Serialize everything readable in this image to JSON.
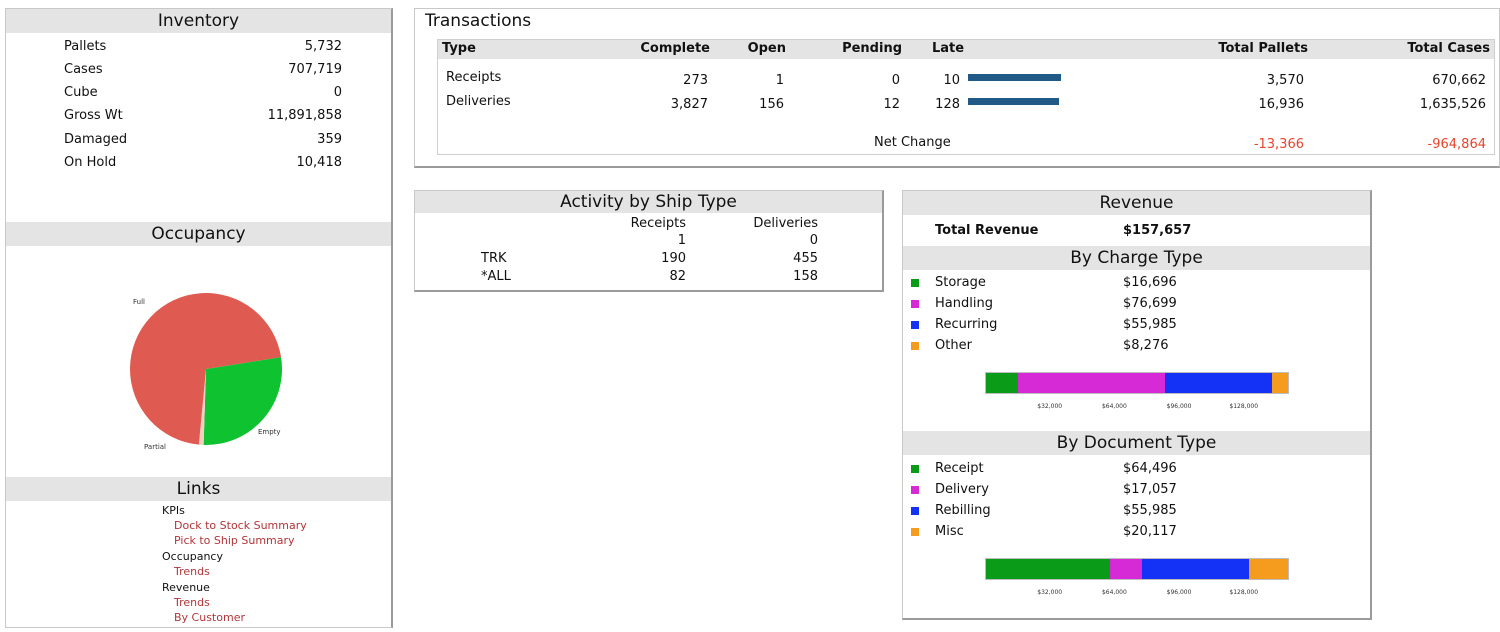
{
  "inventory": {
    "title": "Inventory",
    "rows": [
      {
        "label": "Pallets",
        "value": "5,732"
      },
      {
        "label": "Cases",
        "value": "707,719"
      },
      {
        "label": "Cube",
        "value": "0"
      },
      {
        "label": "Gross Wt",
        "value": "11,891,858"
      },
      {
        "label": "Damaged",
        "value": "359"
      },
      {
        "label": "On Hold",
        "value": "10,418"
      }
    ]
  },
  "occupancy": {
    "title": "Occupancy",
    "labels": {
      "full": "Full",
      "empty": "Empty",
      "partial": "Partial"
    },
    "chart_data": {
      "type": "pie",
      "labels": [
        "Full",
        "Empty",
        "Partial"
      ],
      "values": [
        71,
        28,
        1
      ],
      "colors": [
        "#df5a50",
        "#0ec230",
        "#f2d0c0"
      ]
    }
  },
  "links": {
    "title": "Links",
    "items": [
      {
        "text": "KPIs",
        "kind": "category"
      },
      {
        "text": "Dock to Stock Summary",
        "kind": "link"
      },
      {
        "text": "Pick to Ship Summary",
        "kind": "link"
      },
      {
        "text": "Occupancy",
        "kind": "category"
      },
      {
        "text": "Trends",
        "kind": "link"
      },
      {
        "text": "Revenue",
        "kind": "category"
      },
      {
        "text": "Trends",
        "kind": "link"
      },
      {
        "text": "By Customer",
        "kind": "link"
      }
    ]
  },
  "transactions": {
    "title": "Transactions",
    "headers": {
      "type": "Type",
      "complete": "Complete",
      "open": "Open",
      "pending": "Pending",
      "late": "Late",
      "total_pallets": "Total Pallets",
      "total_cases": "Total Cases"
    },
    "rows": [
      {
        "type": "Receipts",
        "complete": "273",
        "open": "1",
        "pending": "0",
        "late": "10",
        "late_fraction": 0.93,
        "total_pallets": "3,570",
        "total_cases": "670,662"
      },
      {
        "type": "Deliveries",
        "complete": "3,827",
        "open": "156",
        "pending": "12",
        "late": "128",
        "late_fraction": 0.91,
        "total_pallets": "16,936",
        "total_cases": "1,635,526"
      }
    ],
    "net_change": {
      "label": "Net Change",
      "total_pallets": "-13,366",
      "total_cases": "-964,864"
    },
    "colors": {
      "late_bar": "#215a86",
      "negative": "#e8452e"
    }
  },
  "activity": {
    "title": "Activity by Ship Type",
    "headers": {
      "receipts": "Receipts",
      "deliveries": "Deliveries"
    },
    "rows": [
      {
        "type": "",
        "receipts": "1",
        "deliveries": "0"
      },
      {
        "type": "TRK",
        "receipts": "190",
        "deliveries": "455"
      },
      {
        "type": "*ALL",
        "receipts": "82",
        "deliveries": "158"
      }
    ]
  },
  "revenue": {
    "title": "Revenue",
    "total_label": "Total Revenue",
    "total_value": "$157,657",
    "charge_type": {
      "title": "By Charge Type",
      "items": [
        {
          "label": "Storage",
          "value": "$16,696",
          "amount": 16696,
          "color": "#0a9c18"
        },
        {
          "label": "Handling",
          "value": "$76,699",
          "amount": 76699,
          "color": "#d62ad6"
        },
        {
          "label": "Recurring",
          "value": "$55,985",
          "amount": 55985,
          "color": "#1432f5"
        },
        {
          "label": "Other",
          "value": "$8,276",
          "amount": 8276,
          "color": "#f59b1e"
        }
      ]
    },
    "document_type": {
      "title": "By Document Type",
      "items": [
        {
          "label": "Receipt",
          "value": "$64,496",
          "amount": 64496,
          "color": "#0a9c18"
        },
        {
          "label": "Delivery",
          "value": "$17,057",
          "amount": 17057,
          "color": "#d62ad6"
        },
        {
          "label": "Rebilling",
          "value": "$55,985",
          "amount": 55985,
          "color": "#1432f5"
        },
        {
          "label": "Misc",
          "value": "$20,117",
          "amount": 20117,
          "color": "#f59b1e"
        }
      ]
    },
    "ticks": [
      "$32,000",
      "$64,000",
      "$96,000",
      "$128,000"
    ]
  }
}
